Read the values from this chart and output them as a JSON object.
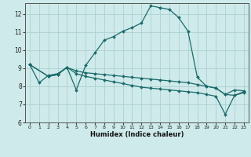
{
  "xlabel": "Humidex (Indice chaleur)",
  "xlim": [
    -0.5,
    23.5
  ],
  "ylim": [
    6,
    12.6
  ],
  "yticks": [
    6,
    7,
    8,
    9,
    10,
    11,
    12
  ],
  "xticks": [
    0,
    1,
    2,
    3,
    4,
    5,
    6,
    7,
    8,
    9,
    10,
    11,
    12,
    13,
    14,
    15,
    16,
    17,
    18,
    19,
    20,
    21,
    22,
    23
  ],
  "background_color": "#ceeaea",
  "grid_color": "#aed0d0",
  "line_color": "#1a6b6b",
  "line1_x": [
    0,
    1,
    2,
    3,
    4,
    5,
    6,
    7,
    8,
    9,
    10,
    11,
    12,
    13,
    14,
    15,
    16,
    17,
    18,
    19,
    20,
    21,
    22,
    23
  ],
  "line1_y": [
    9.2,
    8.2,
    8.6,
    8.7,
    9.05,
    7.8,
    9.15,
    9.85,
    10.55,
    10.75,
    11.05,
    11.25,
    11.5,
    12.45,
    12.35,
    12.25,
    11.8,
    11.05,
    8.5,
    8.0,
    7.9,
    7.55,
    7.5,
    7.7
  ],
  "line2_x": [
    0,
    2,
    3,
    4,
    5,
    6,
    7,
    8,
    9,
    10,
    11,
    12,
    13,
    14,
    15,
    16,
    17,
    18,
    19,
    20,
    21,
    22,
    23
  ],
  "line2_y": [
    9.2,
    8.55,
    8.65,
    9.05,
    8.85,
    8.75,
    8.7,
    8.65,
    8.6,
    8.55,
    8.5,
    8.45,
    8.4,
    8.35,
    8.3,
    8.25,
    8.2,
    8.1,
    8.0,
    7.9,
    7.55,
    7.8,
    7.75
  ],
  "line3_x": [
    0,
    2,
    3,
    4,
    5,
    6,
    7,
    8,
    9,
    10,
    11,
    12,
    13,
    14,
    15,
    16,
    17,
    18,
    19,
    20,
    21,
    22,
    23
  ],
  "line3_y": [
    9.2,
    8.55,
    8.65,
    9.05,
    8.7,
    8.55,
    8.45,
    8.35,
    8.25,
    8.15,
    8.05,
    7.95,
    7.9,
    7.85,
    7.8,
    7.75,
    7.7,
    7.65,
    7.55,
    7.45,
    6.45,
    7.5,
    7.65
  ]
}
